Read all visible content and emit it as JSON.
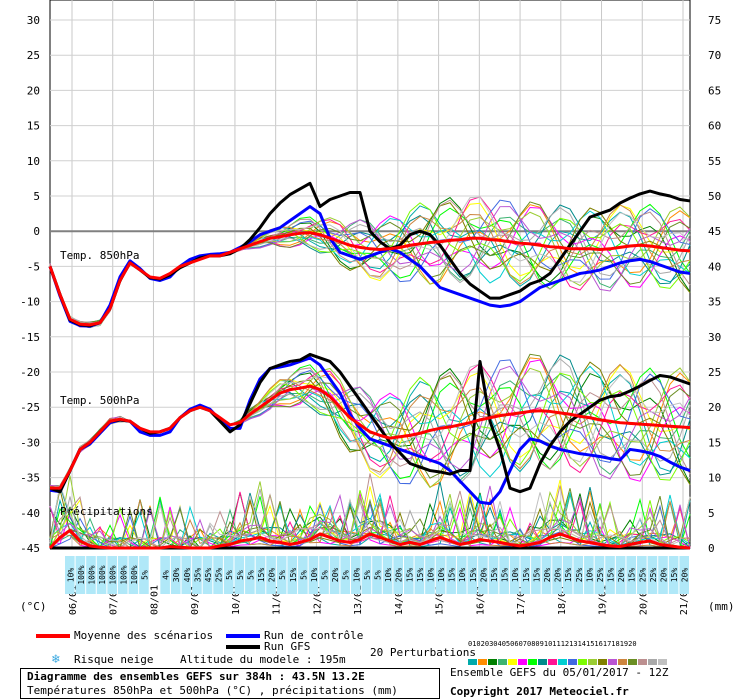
{
  "chart_data": {
    "type": "line",
    "title": "Diagramme des ensembles GEFS sur 384h : 43.5N 13.2E",
    "subtitle": "Températures 850hPa et 500hPa (°C) , précipitations (mm)",
    "left_axis": {
      "unit": "(°C)",
      "ticks": [
        30,
        25,
        20,
        15,
        10,
        5,
        0,
        -5,
        -10,
        -15,
        -20,
        -25,
        -30,
        -35,
        -40,
        -45
      ],
      "ylim": [
        -45,
        30
      ]
    },
    "right_axis": {
      "unit": "(mm)",
      "ticks": [
        75,
        70,
        65,
        60,
        55,
        50,
        45,
        40,
        35,
        30,
        25,
        20,
        15,
        10,
        5,
        0
      ],
      "ylim": [
        0,
        75
      ]
    },
    "x_ticks": [
      "06/01",
      "07/01",
      "08/01",
      "09/01",
      "10/01",
      "11/01",
      "12/01",
      "13/01",
      "14/01",
      "15/01",
      "16/01",
      "17/01",
      "18/01",
      "19/01",
      "20/01",
      "21/01"
    ],
    "section_labels": {
      "t850": "Temp. 850hPa",
      "t500": "Temp. 500hPa",
      "precip": "Précipitations"
    },
    "x_hours_step": 6,
    "series": [
      {
        "name": "Moyenne des scénarios",
        "color": "#ff0000",
        "t850": [
          -5,
          -9,
          -12.5,
          -13.2,
          -13.3,
          -13,
          -11,
          -7,
          -4.5,
          -5.5,
          -6.5,
          -6.7,
          -6,
          -5,
          -4.5,
          -4,
          -3.5,
          -3.5,
          -3,
          -2.5,
          -2,
          -1.5,
          -1,
          -0.8,
          -0.5,
          -0.3,
          -0.2,
          -0.5,
          -1,
          -1.5,
          -2,
          -2.3,
          -2.5,
          -2.6,
          -2.5,
          -2.3,
          -2,
          -1.8,
          -1.6,
          -1.5,
          -1.3,
          -1.2,
          -1,
          -1,
          -1.2,
          -1.3,
          -1.5,
          -1.7,
          -1.8,
          -2,
          -2.2,
          -2.3,
          -2.5,
          -2.5,
          -2.5,
          -2.6,
          -2.5,
          -2.3,
          -2.1,
          -2,
          -2.1,
          -2.3,
          -2.5,
          -2.7,
          -2.8
        ],
        "t500": [
          -36.5,
          -36.5,
          -34,
          -31,
          -30,
          -28.5,
          -27,
          -26.7,
          -27,
          -28,
          -28.5,
          -28.5,
          -28,
          -26.5,
          -25.5,
          -25,
          -25.5,
          -26.5,
          -27.5,
          -27.2,
          -26,
          -25,
          -24,
          -23,
          -22.5,
          -22.3,
          -22,
          -22.5,
          -23.5,
          -25,
          -26.5,
          -27.5,
          -28.5,
          -29,
          -29.4,
          -29.2,
          -29,
          -28.7,
          -28.3,
          -28,
          -27.8,
          -27.5,
          -27.2,
          -26.8,
          -26.5,
          -26.2,
          -26,
          -25.8,
          -25.6,
          -25.5,
          -25.6,
          -25.8,
          -26,
          -26.3,
          -26.5,
          -26.8,
          -27,
          -27.2,
          -27.3,
          -27.4,
          -27.5,
          -27.6,
          -27.7,
          -27.8,
          -27.9
        ],
        "precip": [
          0,
          1.5,
          2.5,
          1,
          0.3,
          0.1,
          0,
          0,
          0,
          0,
          0,
          0,
          0.2,
          0.1,
          0,
          0,
          0,
          0.3,
          0.5,
          1,
          1.2,
          1.5,
          1,
          0.8,
          0.5,
          0.8,
          1.2,
          2,
          1.5,
          1,
          0.8,
          1.2,
          2,
          1.5,
          1,
          0.5,
          0.8,
          0.5,
          1,
          1.5,
          1,
          0.5,
          0.8,
          1.2,
          1,
          0.8,
          0.5,
          0.3,
          0.5,
          0.8,
          1.5,
          2,
          1.5,
          1,
          0.8,
          0.5,
          0.3,
          0.2,
          0.5,
          0.8,
          1,
          0.5,
          0.3,
          0.1,
          0
        ]
      },
      {
        "name": "Run de contrôle",
        "color": "#0000ff",
        "t850": [
          -5,
          -9.2,
          -12.8,
          -13.4,
          -13.5,
          -13,
          -10.5,
          -6.5,
          -4.2,
          -5.3,
          -6.7,
          -7,
          -6.5,
          -5,
          -4,
          -3.5,
          -3.3,
          -3.2,
          -3,
          -2.3,
          -1.5,
          -0.5,
          0,
          0.5,
          1.5,
          2.5,
          3.5,
          2.5,
          -1,
          -3,
          -3.5,
          -4,
          -3.5,
          -3,
          -2.5,
          -3,
          -4,
          -5,
          -6.5,
          -8,
          -8.5,
          -9,
          -9.5,
          -10,
          -10.5,
          -10.7,
          -10.5,
          -10,
          -9,
          -8,
          -7.5,
          -7,
          -6.5,
          -6,
          -5.8,
          -5.5,
          -5,
          -4.5,
          -4.2,
          -4,
          -4.3,
          -4.8,
          -5.3,
          -5.8,
          -6
        ],
        "t500": [
          -36.8,
          -37,
          -34,
          -31,
          -30.2,
          -28.7,
          -27.2,
          -26.8,
          -27,
          -28.5,
          -29,
          -29,
          -28.5,
          -26.5,
          -25.3,
          -24.7,
          -25.3,
          -26.8,
          -28,
          -28,
          -24,
          -21,
          -19.5,
          -19.3,
          -19,
          -18.5,
          -18,
          -19,
          -21,
          -23,
          -26,
          -28,
          -29.5,
          -30,
          -30.5,
          -31,
          -31.5,
          -32,
          -32.5,
          -33,
          -34,
          -35.5,
          -37,
          -38.5,
          -38.7,
          -37,
          -34,
          -31,
          -29.5,
          -29.8,
          -30.5,
          -31,
          -31.3,
          -31.6,
          -31.8,
          -32,
          -32.3,
          -32.5,
          -31,
          -31.2,
          -31.5,
          -32,
          -32.8,
          -33.5,
          -34
        ]
      },
      {
        "name": "Run GFS",
        "color": "#000000",
        "t850": [
          -5,
          -9,
          -12.6,
          -13.3,
          -13.4,
          -13,
          -11,
          -7,
          -4.5,
          -5.5,
          -6.6,
          -6.8,
          -6.2,
          -5.2,
          -4.5,
          -3.8,
          -3.5,
          -3.5,
          -3.2,
          -2.5,
          -1.2,
          0.5,
          2.5,
          4,
          5.2,
          6,
          6.8,
          3.5,
          4.5,
          5,
          5.5,
          5.5,
          0,
          -1.5,
          -2.5,
          -2,
          -0.5,
          0,
          -0.5,
          -2,
          -4,
          -6,
          -7.5,
          -8.5,
          -9.5,
          -9.5,
          -9,
          -8.5,
          -7.5,
          -7,
          -6,
          -4,
          -2,
          0,
          2,
          2.5,
          3,
          4,
          4.7,
          5.3,
          5.7,
          5.3,
          5,
          4.5,
          4.3
        ],
        "t500": [
          -36.5,
          -37,
          -34,
          -31,
          -30,
          -28.5,
          -27,
          -26.8,
          -27,
          -28,
          -28.7,
          -28.5,
          -28,
          -26.5,
          -25.5,
          -25,
          -25.5,
          -27,
          -28.5,
          -27.5,
          -24.5,
          -21.5,
          -19.5,
          -19,
          -18.5,
          -18.3,
          -17.5,
          -18,
          -18.5,
          -20,
          -22,
          -24,
          -26,
          -28,
          -30,
          -31.5,
          -33,
          -33.5,
          -34,
          -34.2,
          -34.5,
          -34,
          -34,
          -18.5,
          -27,
          -31,
          -36.5,
          -37,
          -36.5,
          -33,
          -30.5,
          -28.5,
          -27,
          -26,
          -25,
          -24,
          -23.5,
          -23.3,
          -22.7,
          -22,
          -21.2,
          -20.5,
          -20.7,
          -21.2,
          -21.7
        ],
        "precip": [
          0,
          0,
          0,
          0,
          0,
          0,
          0,
          0,
          0,
          0,
          0,
          0,
          0,
          0,
          0,
          0,
          0,
          0,
          0,
          0,
          0,
          0,
          0,
          0,
          0,
          0,
          0,
          0,
          0,
          0,
          0,
          0,
          0,
          0,
          0,
          0,
          0,
          0,
          0,
          0,
          0,
          0,
          0,
          0,
          0,
          0,
          0,
          0,
          0,
          0,
          0,
          0,
          0,
          0,
          0,
          0,
          0,
          0,
          0,
          0,
          0,
          0,
          0,
          0,
          0
        ]
      }
    ],
    "perturbations_label": "20 Perturbations",
    "perturbation_ids": [
      "01",
      "02",
      "03",
      "04",
      "05",
      "06",
      "07",
      "08",
      "09",
      "10",
      "11",
      "12",
      "13",
      "14",
      "15",
      "16",
      "17",
      "18",
      "19",
      "20"
    ],
    "perturbation_colors": [
      "#00aaaa",
      "#ff8c00",
      "#008000",
      "#3cb371",
      "#ffff00",
      "#ff00ff",
      "#00ff00",
      "#008b8b",
      "#ff1493",
      "#00ced1",
      "#4169e1",
      "#7cfc00",
      "#9acd32",
      "#808000",
      "#ba55d3",
      "#cd853f",
      "#6b8e23",
      "#bc8f8f",
      "#a9a9a9",
      "#c0c0c0"
    ],
    "snow_risk": [
      "10%",
      "100%",
      "100%",
      "100%",
      "100%",
      "100%",
      "100%",
      "5%",
      "",
      "4%",
      "30%",
      "40%",
      "35%",
      "45%",
      "25%",
      "5%",
      "5%",
      "5%",
      "15%",
      "20%",
      "5%",
      "15%",
      "5%",
      "10%",
      "5%",
      "20%",
      "5%",
      "10%",
      "5%",
      "5%",
      "10%",
      "20%",
      "15%",
      "15%",
      "10%",
      "10%",
      "15%",
      "10%",
      "15%",
      "20%",
      "15%",
      "15%",
      "10%",
      "15%",
      "15%",
      "20%",
      "20%",
      "15%",
      "25%",
      "10%",
      "25%",
      "15%",
      "20%",
      "15%",
      "25%",
      "25%",
      "20%",
      "15%",
      "20%"
    ]
  },
  "legend": {
    "mean": "Moyenne des scénarios",
    "control": "Run de contrôle",
    "gfs": "Run GFS",
    "snow": "Risque neige",
    "altitude": "Altitude du modele : 195m",
    "perturbations": "20 Perturbations"
  },
  "footer": {
    "title": "Diagramme des ensembles GEFS sur 384h : 43.5N 13.2E",
    "subtitle": "Températures 850hPa et 500hPa (°C) , précipitations (mm)",
    "ensemble": "Ensemble GEFS du 05/01/2017 - 12Z",
    "copyright": "Copyright 2017 Meteociel.fr"
  },
  "colors": {
    "mean": "#ff0000",
    "control": "#0000ff",
    "gfs": "#000000",
    "snow_band": "#b0e8f8"
  }
}
